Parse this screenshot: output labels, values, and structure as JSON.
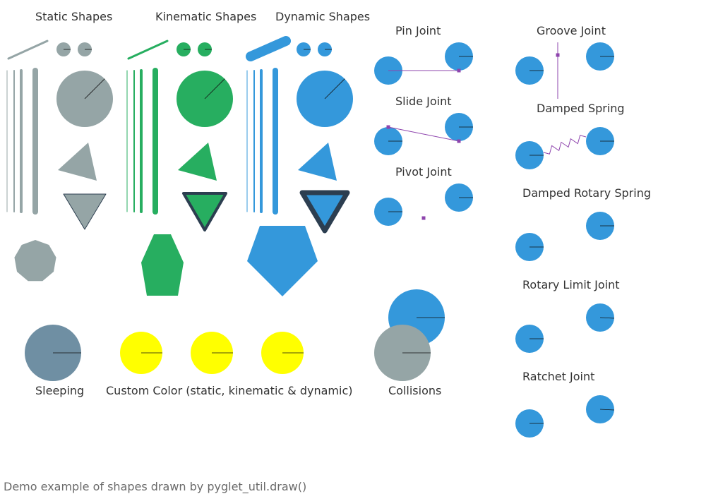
{
  "labels": {
    "static_shapes": "Static Shapes",
    "kinematic_shapes": "Kinematic Shapes",
    "dynamic_shapes": "Dynamic Shapes",
    "pin_joint": "Pin Joint",
    "slide_joint": "Slide Joint",
    "pivot_joint": "Pivot Joint",
    "groove_joint": "Groove Joint",
    "damped_spring": "Damped Spring",
    "damped_rotary_spring": "Damped Rotary Spring",
    "rotary_limit_joint": "Rotary Limit Joint",
    "ratchet_joint": "Ratchet Joint",
    "sleeping": "Sleeping",
    "custom_color": "Custom Color (static, kinematic & dynamic)",
    "collisions": "Collisions"
  },
  "footer": "Demo example of shapes drawn by pyglet_util.draw()",
  "colors": {
    "static": "#95a5a6",
    "kinematic": "#27ae60",
    "dynamic": "#3498db",
    "sleeping": "#6f8fa3",
    "custom": "#ffff00",
    "outline": "#2c3e50",
    "constraint": "#8e44ad",
    "text": "#333333",
    "footer_text": "#6a6a6a"
  }
}
